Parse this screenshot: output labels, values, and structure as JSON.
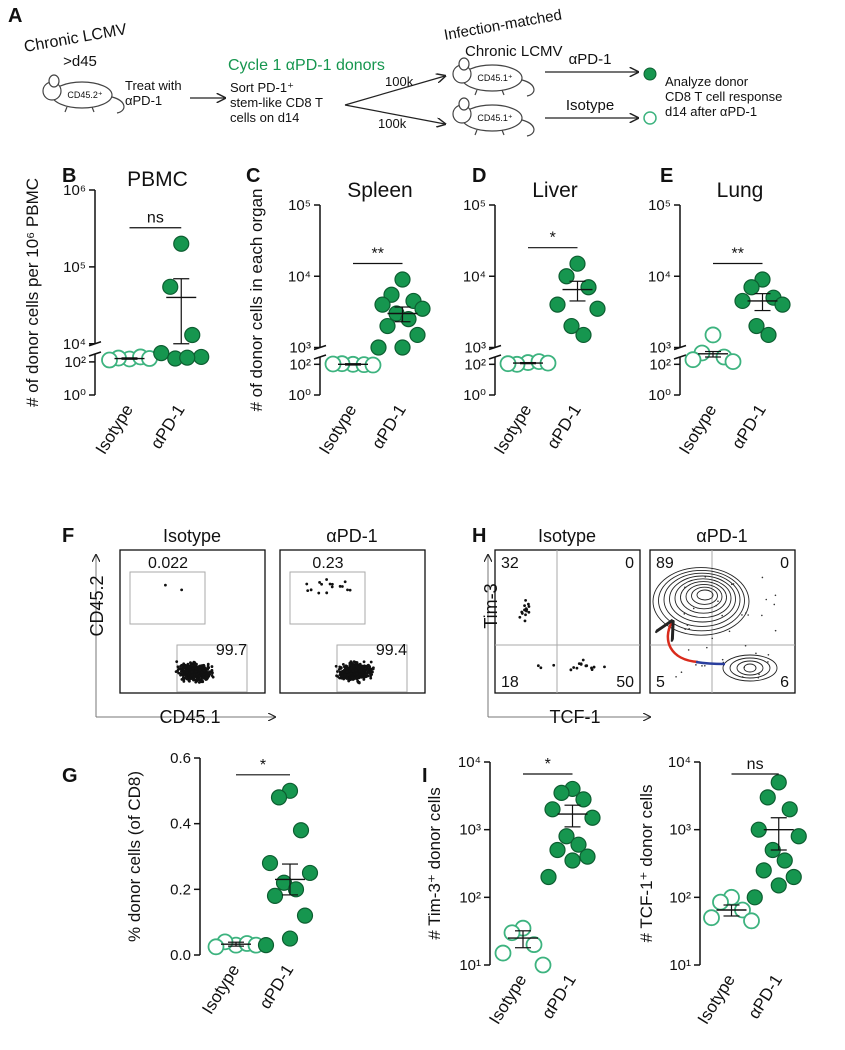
{
  "panel_labels": [
    "A",
    "B",
    "C",
    "D",
    "E",
    "F",
    "G",
    "H",
    "I"
  ],
  "schematic": {
    "donor_title": "Chronic LCMV",
    "donor_days": ">d45",
    "donor_marker": "CD45.2⁺",
    "treatment": [
      "Treat with",
      "αPD-1"
    ],
    "donors_title": "Cycle 1 αPD-1 donors",
    "sort": [
      "Sort PD-1⁺",
      "stem-like CD8 T",
      "cells on d14"
    ],
    "transfer": [
      "100k",
      "100k"
    ],
    "recipients_title": [
      "Infection-matched",
      "Chronic LCMV"
    ],
    "recipient_marker": [
      "CD45.1⁺",
      "CD45.1⁺"
    ],
    "treatments": [
      "αPD-1",
      "Isotype"
    ],
    "analysis": [
      "Analyze donor",
      "CD8 T cell response",
      "d14 after αPD-1"
    ]
  },
  "chart_data": [
    {
      "type": "dotplot",
      "title": "PBMC",
      "y_label": "# of donor cells per 10⁶ PBMC",
      "categories": [
        "Isotype",
        "αPD-1"
      ],
      "values": [
        [
          150,
          170,
          200,
          130,
          160
        ],
        [
          200000,
          55000,
          13000,
          400,
          200,
          160,
          180
        ]
      ],
      "means": [
        160,
        40000
      ],
      "errors": [
        15,
        30000
      ],
      "significance": "ns",
      "colors": [
        "#3db37f",
        "#16964f"
      ],
      "fill_styles": [
        "hollow",
        "filled"
      ],
      "log": true,
      "ylim": [
        1,
        1000000
      ],
      "ybreak": [
        300,
        10000
      ],
      "yticks": [
        {
          "value": 1,
          "label": "10⁰"
        },
        {
          "value": 100,
          "label": "10²"
        },
        {
          "value": 10000,
          "label": "10⁴"
        },
        {
          "value": 100000,
          "label": "10⁵"
        },
        {
          "value": 1000000,
          "label": "10⁶"
        }
      ]
    },
    {
      "type": "dotplot",
      "title": "Spleen",
      "y_label": "# of donor cells in each organ",
      "categories": [
        "Isotype",
        "αPD-1"
      ],
      "values": [
        [
          100,
          110,
          95,
          105,
          90
        ],
        [
          9000,
          5500,
          4500,
          4000,
          3500,
          3000,
          2500,
          2000,
          1500,
          1000,
          1000
        ]
      ],
      "means": [
        100,
        3000
      ],
      "errors": [
        10,
        700
      ],
      "significance": "**",
      "colors": [
        "#3db37f",
        "#16964f"
      ],
      "fill_styles": [
        "hollow",
        "filled"
      ],
      "log": true,
      "ylim": [
        1,
        100000
      ],
      "ybreak": [
        300,
        1000
      ],
      "yticks": [
        {
          "value": 1,
          "label": "10⁰"
        },
        {
          "value": 100,
          "label": "10²"
        },
        {
          "value": 1000,
          "label": "10³"
        },
        {
          "value": 10000,
          "label": "10⁴"
        },
        {
          "value": 100000,
          "label": "10⁵"
        }
      ]
    },
    {
      "type": "dotplot",
      "title": "Liver",
      "categories": [
        "Isotype",
        "αPD-1"
      ],
      "values": [
        [
          130,
          100,
          150,
          110,
          120
        ],
        [
          15000,
          10000,
          7000,
          4000,
          3500,
          2000,
          1500
        ]
      ],
      "means": [
        120,
        6500
      ],
      "errors": [
        10,
        2000
      ],
      "significance": "*",
      "colors": [
        "#3db37f",
        "#16964f"
      ],
      "fill_styles": [
        "hollow",
        "filled"
      ],
      "log": true,
      "ylim": [
        1,
        100000
      ],
      "ybreak": [
        300,
        1000
      ],
      "yticks": [
        {
          "value": 1,
          "label": "10⁰"
        },
        {
          "value": 100,
          "label": "10²"
        },
        {
          "value": 1000,
          "label": "10³"
        },
        {
          "value": 10000,
          "label": "10⁴"
        },
        {
          "value": 100000,
          "label": "10⁵"
        }
      ]
    },
    {
      "type": "dotplot",
      "title": "Lung",
      "categories": [
        "Isotype",
        "αPD-1"
      ],
      "values": [
        [
          1500,
          500,
          300,
          200,
          150
        ],
        [
          9000,
          7000,
          5000,
          4500,
          4000,
          2000,
          1500
        ]
      ],
      "means": [
        450,
        4500
      ],
      "errors": [
        150,
        1200
      ],
      "significance": "**",
      "colors": [
        "#3db37f",
        "#16964f"
      ],
      "fill_styles": [
        "hollow",
        "filled"
      ],
      "log": true,
      "ylim": [
        1,
        100000
      ],
      "ybreak": [
        300,
        1000
      ],
      "yticks": [
        {
          "value": 1,
          "label": "10⁰"
        },
        {
          "value": 100,
          "label": "10²"
        },
        {
          "value": 1000,
          "label": "10³"
        },
        {
          "value": 10000,
          "label": "10⁴"
        },
        {
          "value": 100000,
          "label": "10⁵"
        }
      ]
    },
    {
      "type": "dotplot",
      "y_label": "% donor cells (of CD8)",
      "categories": [
        "Isotype",
        "αPD-1"
      ],
      "values": [
        [
          0.03,
          0.04,
          0.035,
          0.025,
          0.03
        ],
        [
          0.5,
          0.48,
          0.38,
          0.28,
          0.25,
          0.22,
          0.2,
          0.18,
          0.12,
          0.05,
          0.03
        ]
      ],
      "means": [
        0.033,
        0.23
      ],
      "errors": [
        0.006,
        0.047
      ],
      "significance": "*",
      "colors": [
        "#3db37f",
        "#16964f"
      ],
      "fill_styles": [
        "hollow",
        "filled"
      ],
      "log": false,
      "ylim": [
        0,
        0.6
      ],
      "yticks": [
        {
          "value": 0,
          "label": "0.0"
        },
        {
          "value": 0.2,
          "label": "0.2"
        },
        {
          "value": 0.4,
          "label": "0.4"
        },
        {
          "value": 0.6,
          "label": "0.6"
        }
      ]
    },
    {
      "type": "dotplot",
      "y_label": "# Tim-3⁺ donor cells",
      "categories": [
        "Isotype",
        "αPD-1"
      ],
      "values": [
        [
          35,
          30,
          20,
          15,
          10
        ],
        [
          4000,
          3500,
          2800,
          2000,
          1500,
          800,
          600,
          500,
          400,
          350,
          200
        ]
      ],
      "means": [
        25,
        1700
      ],
      "errors": [
        7,
        600
      ],
      "significance": "*",
      "colors": [
        "#3db37f",
        "#16964f"
      ],
      "fill_styles": [
        "hollow",
        "filled"
      ],
      "log": true,
      "ylim": [
        10,
        10000
      ],
      "yticks": [
        {
          "value": 10,
          "label": "10¹"
        },
        {
          "value": 100,
          "label": "10²"
        },
        {
          "value": 1000,
          "label": "10³"
        },
        {
          "value": 10000,
          "label": "10⁴"
        }
      ]
    },
    {
      "type": "dotplot",
      "y_label": "# TCF-1⁺ donor cells",
      "categories": [
        "Isotype",
        "αPD-1"
      ],
      "values": [
        [
          100,
          85,
          65,
          50,
          45
        ],
        [
          5000,
          3000,
          2000,
          1000,
          800,
          500,
          350,
          250,
          200,
          150,
          100
        ]
      ],
      "means": [
        65,
        1000
      ],
      "errors": [
        12,
        500
      ],
      "significance": "ns",
      "colors": [
        "#3db37f",
        "#16964f"
      ],
      "fill_styles": [
        "hollow",
        "filled"
      ],
      "log": true,
      "ylim": [
        10,
        10000
      ],
      "yticks": [
        {
          "value": 10,
          "label": "10¹"
        },
        {
          "value": 100,
          "label": "10²"
        },
        {
          "value": 1000,
          "label": "10³"
        },
        {
          "value": 10000,
          "label": "10⁴"
        }
      ]
    }
  ],
  "flow_F": {
    "x_label": "CD45.1",
    "y_label": "CD45.2",
    "plots": [
      {
        "title": "Isotype",
        "gates": [
          0.022,
          99.7
        ]
      },
      {
        "title": "αPD-1",
        "gates": [
          0.23,
          99.4
        ]
      }
    ]
  },
  "flow_H": {
    "x_label": "TCF-1",
    "y_label": "Tim-3",
    "plots": [
      {
        "title": "Isotype",
        "quadrants": [
          32,
          0,
          18,
          50
        ]
      },
      {
        "title": "αPD-1",
        "quadrants": [
          89,
          0,
          5,
          6
        ]
      }
    ]
  }
}
